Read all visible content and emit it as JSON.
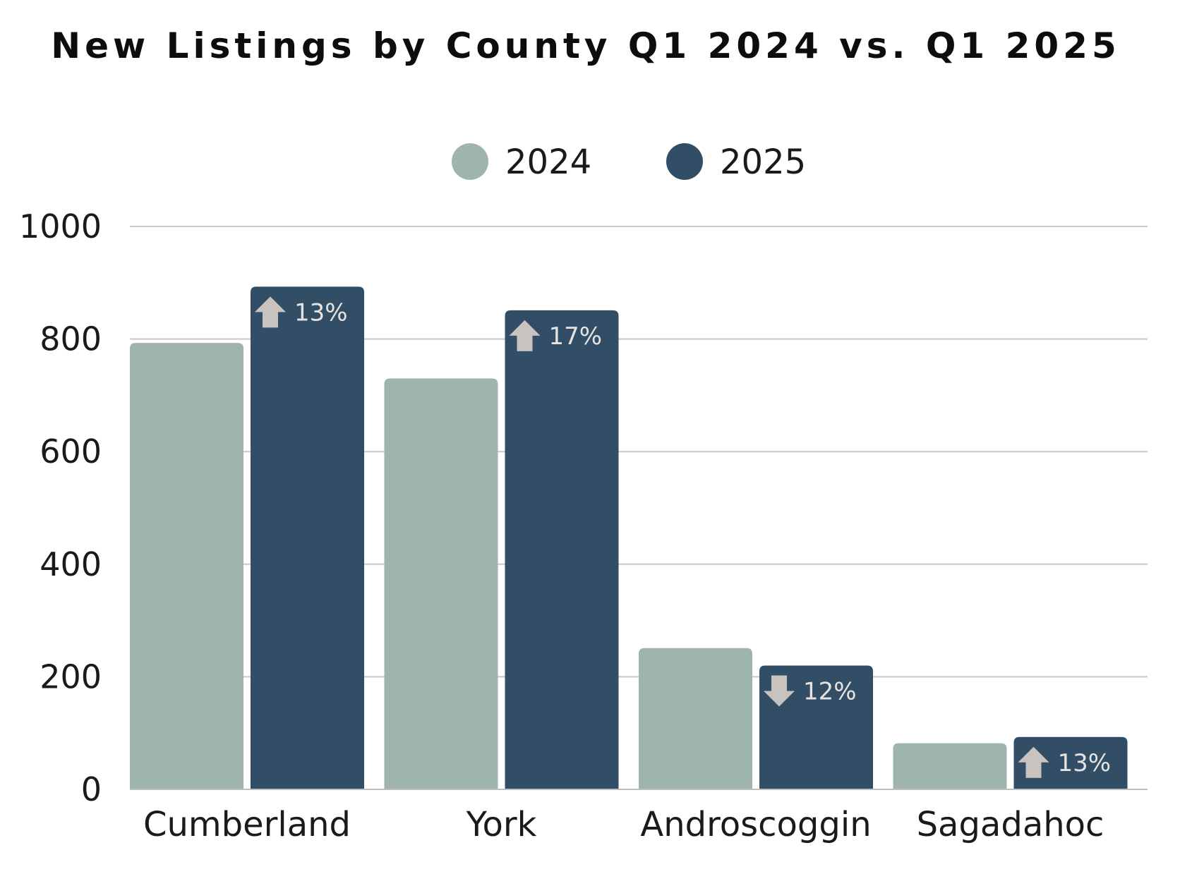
{
  "chart_data": {
    "type": "bar",
    "title": "New Listings by County Q1 2024 vs. Q1 2025",
    "categories": [
      "Cumberland",
      "York",
      "Androscoggin",
      "Sagadahoc"
    ],
    "series": [
      {
        "name": "2024",
        "color": "#9fb4ac",
        "values": [
          793,
          730,
          251,
          82
        ]
      },
      {
        "name": "2025",
        "color": "#324e67",
        "values": [
          893,
          851,
          220,
          93
        ]
      }
    ],
    "change_labels": [
      {
        "direction": "up",
        "text": "13%"
      },
      {
        "direction": "up",
        "text": "17%"
      },
      {
        "direction": "down",
        "text": "12%"
      },
      {
        "direction": "up",
        "text": "13%"
      }
    ],
    "arrow_color": "#c9c3c0",
    "ylim": [
      0,
      1000
    ],
    "yticks": [
      "0",
      "200",
      "400",
      "600",
      "800",
      "1000"
    ],
    "grid": true,
    "legend_position": "top-center",
    "xlabel": "",
    "ylabel": ""
  }
}
